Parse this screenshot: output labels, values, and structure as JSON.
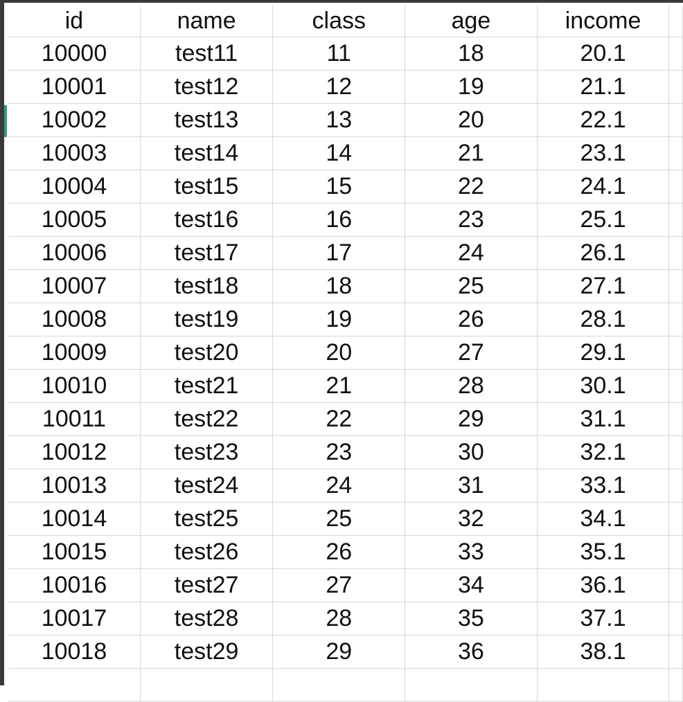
{
  "sheet": {
    "columns": [
      "id",
      "name",
      "class",
      "age",
      "income"
    ],
    "rows": [
      [
        "10000",
        "test11",
        "11",
        "18",
        "20.1"
      ],
      [
        "10001",
        "test12",
        "12",
        "19",
        "21.1"
      ],
      [
        "10002",
        "test13",
        "13",
        "20",
        "22.1"
      ],
      [
        "10003",
        "test14",
        "14",
        "21",
        "23.1"
      ],
      [
        "10004",
        "test15",
        "15",
        "22",
        "24.1"
      ],
      [
        "10005",
        "test16",
        "16",
        "23",
        "25.1"
      ],
      [
        "10006",
        "test17",
        "17",
        "24",
        "26.1"
      ],
      [
        "10007",
        "test18",
        "18",
        "25",
        "27.1"
      ],
      [
        "10008",
        "test19",
        "19",
        "26",
        "28.1"
      ],
      [
        "10009",
        "test20",
        "20",
        "27",
        "29.1"
      ],
      [
        "10010",
        "test21",
        "21",
        "28",
        "30.1"
      ],
      [
        "10011",
        "test22",
        "22",
        "29",
        "31.1"
      ],
      [
        "10012",
        "test23",
        "23",
        "30",
        "32.1"
      ],
      [
        "10013",
        "test24",
        "24",
        "31",
        "33.1"
      ],
      [
        "10014",
        "test25",
        "25",
        "32",
        "34.1"
      ],
      [
        "10015",
        "test26",
        "26",
        "33",
        "35.1"
      ],
      [
        "10016",
        "test27",
        "27",
        "34",
        "36.1"
      ],
      [
        "10017",
        "test28",
        "28",
        "35",
        "37.1"
      ],
      [
        "10018",
        "test29",
        "29",
        "36",
        "38.1"
      ]
    ]
  },
  "colors": {
    "gridline": "#d6d6d6",
    "frame": "#3a3a3a",
    "selection_marker": "#2f9e78",
    "text": "#111111"
  }
}
